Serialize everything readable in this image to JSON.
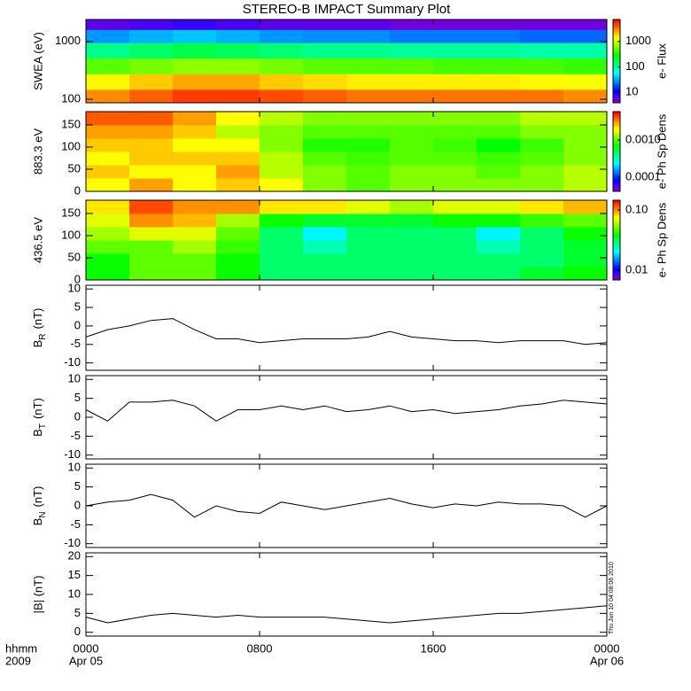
{
  "chart_data": [
    {
      "type": "heatmap",
      "title": "STEREO-B IMPACT Summary Plot",
      "y_label": "SWEA (eV)",
      "colorbar_label": "e- Flux",
      "ylog": true,
      "ylim": [
        87,
        2400
      ],
      "yticks": [
        100,
        1000
      ],
      "xlim": [
        0,
        24
      ],
      "x": [
        1,
        3,
        5,
        7,
        9,
        11,
        13,
        15,
        17,
        19,
        21,
        23
      ],
      "y": [
        110,
        200,
        380,
        700,
        1300,
        2000
      ],
      "values": [
        [
          3000,
          4000,
          5000,
          5000,
          4500,
          4000,
          3500,
          3500,
          3500,
          3500,
          3500,
          3000
        ],
        [
          1500,
          2000,
          2500,
          2500,
          2000,
          1800,
          1600,
          1600,
          1600,
          1600,
          1500,
          1400
        ],
        [
          500,
          600,
          700,
          700,
          600,
          500,
          500,
          500,
          450,
          450,
          450,
          400
        ],
        [
          120,
          150,
          180,
          160,
          140,
          120,
          120,
          110,
          110,
          110,
          100,
          100
        ],
        [
          30,
          35,
          40,
          35,
          30,
          28,
          28,
          25,
          25,
          25,
          22,
          22
        ],
        [
          6,
          7,
          8,
          7,
          6,
          6,
          6,
          5,
          5,
          5,
          5,
          5
        ]
      ],
      "clog": true,
      "clim": [
        3.9,
        7300
      ],
      "cticks": [
        10,
        100,
        1000
      ]
    },
    {
      "type": "heatmap",
      "y_label": "883.3 eV",
      "colorbar_label": "e- Ph Sp Dens",
      "ylim": [
        0,
        180
      ],
      "yticks": [
        0,
        50,
        100,
        150
      ],
      "xlim": [
        0,
        24
      ],
      "x": [
        1,
        3,
        5,
        7,
        9,
        11,
        13,
        15,
        17,
        19,
        21,
        23
      ],
      "y": [
        15,
        45,
        75,
        105,
        135,
        165
      ],
      "values": [
        [
          0.002,
          0.003,
          0.002,
          0.0025,
          0.002,
          0.0012,
          0.001,
          0.0012,
          0.0012,
          0.0012,
          0.0012,
          0.0015
        ],
        [
          0.0025,
          0.002,
          0.002,
          0.003,
          0.0015,
          0.0012,
          0.001,
          0.0012,
          0.0012,
          0.001,
          0.0012,
          0.0015
        ],
        [
          0.002,
          0.0025,
          0.0025,
          0.0025,
          0.0015,
          0.001,
          0.0009,
          0.001,
          0.001,
          0.0009,
          0.001,
          0.0012
        ],
        [
          0.0025,
          0.0025,
          0.002,
          0.002,
          0.0012,
          0.0008,
          0.0008,
          0.001,
          0.0009,
          0.0007,
          0.0009,
          0.0012
        ],
        [
          0.003,
          0.003,
          0.0025,
          0.0015,
          0.0012,
          0.001,
          0.001,
          0.001,
          0.001,
          0.001,
          0.0012,
          0.0012
        ],
        [
          0.004,
          0.004,
          0.003,
          0.002,
          0.0015,
          0.0012,
          0.0012,
          0.0012,
          0.0012,
          0.0012,
          0.0015,
          0.0015
        ]
      ],
      "clog": true,
      "clim": [
        4.2e-05,
        0.0058
      ],
      "cticks": [
        0.0001,
        {
          "value": 0.001,
          "label": "0.0010"
        }
      ]
    },
    {
      "type": "heatmap",
      "y_label": "436.5 eV",
      "colorbar_label": "e- Ph Sp Dens",
      "ylim": [
        0,
        180
      ],
      "yticks": [
        0,
        50,
        100,
        150
      ],
      "xlim": [
        0,
        24
      ],
      "x": [
        1,
        3,
        5,
        7,
        9,
        11,
        13,
        15,
        17,
        19,
        21,
        23
      ],
      "y": [
        15,
        45,
        75,
        105,
        135,
        165
      ],
      "values": [
        [
          0.04,
          0.05,
          0.05,
          0.04,
          0.03,
          0.03,
          0.03,
          0.03,
          0.03,
          0.03,
          0.035,
          0.04
        ],
        [
          0.04,
          0.05,
          0.05,
          0.04,
          0.03,
          0.03,
          0.03,
          0.03,
          0.03,
          0.03,
          0.03,
          0.035
        ],
        [
          0.05,
          0.05,
          0.06,
          0.045,
          0.03,
          0.025,
          0.03,
          0.03,
          0.03,
          0.025,
          0.03,
          0.035
        ],
        [
          0.06,
          0.07,
          0.07,
          0.05,
          0.03,
          0.02,
          0.03,
          0.03,
          0.03,
          0.02,
          0.03,
          0.04
        ],
        [
          0.07,
          0.1,
          0.09,
          0.06,
          0.04,
          0.035,
          0.035,
          0.035,
          0.04,
          0.04,
          0.045,
          0.05
        ],
        [
          0.08,
          0.12,
          0.1,
          0.1,
          0.08,
          0.08,
          0.07,
          0.06,
          0.07,
          0.07,
          0.08,
          0.09
        ]
      ],
      "clog": true,
      "clim": [
        0.0069,
        0.145
      ],
      "cticks": [
        0.01,
        {
          "value": 0.1,
          "label": "0.10"
        }
      ]
    },
    {
      "type": "line",
      "y_label": {
        "base": "B",
        "sub": "R",
        "unit": "(nT)"
      },
      "color": "#000000",
      "ylim": [
        -12,
        11
      ],
      "yticks": [
        -10,
        -5,
        0,
        5,
        10
      ],
      "xlim": [
        0,
        24
      ],
      "x": [
        0,
        1,
        2,
        3,
        4,
        5,
        6,
        7,
        8,
        9,
        10,
        11,
        12,
        13,
        14,
        15,
        16,
        17,
        18,
        19,
        20,
        21,
        22,
        23,
        24
      ],
      "values": [
        -3,
        -1,
        0,
        1.5,
        2,
        -1,
        -3.5,
        -3.5,
        -4.5,
        -4,
        -3.5,
        -3.5,
        -3.5,
        -3,
        -1.5,
        -3,
        -3.5,
        -4,
        -4,
        -4.5,
        -4,
        -4,
        -4,
        -5,
        -4.5
      ]
    },
    {
      "type": "line",
      "y_label": {
        "base": "B",
        "sub": "T",
        "unit": "(nT)"
      },
      "color": "#000000",
      "ylim": [
        -11,
        11
      ],
      "yticks": [
        -10,
        -5,
        0,
        5,
        10
      ],
      "xlim": [
        0,
        24
      ],
      "x": [
        0,
        1,
        2,
        3,
        4,
        5,
        6,
        7,
        8,
        9,
        10,
        11,
        12,
        13,
        14,
        15,
        16,
        17,
        18,
        19,
        20,
        21,
        22,
        23,
        24
      ],
      "values": [
        2,
        -1,
        4,
        4,
        4.5,
        3,
        -1,
        2,
        2,
        3,
        2,
        3,
        1.5,
        2,
        3,
        1.5,
        2,
        1,
        1.5,
        2,
        3,
        3.5,
        4.5,
        4,
        3.5
      ]
    },
    {
      "type": "line",
      "y_label": {
        "base": "B",
        "sub": "N",
        "unit": "(nT)"
      },
      "color": "#000000",
      "ylim": [
        -11,
        11
      ],
      "yticks": [
        -10,
        -5,
        0,
        5,
        10
      ],
      "xlim": [
        0,
        24
      ],
      "x": [
        0,
        1,
        2,
        3,
        4,
        5,
        6,
        7,
        8,
        9,
        10,
        11,
        12,
        13,
        14,
        15,
        16,
        17,
        18,
        19,
        20,
        21,
        22,
        23,
        24
      ],
      "values": [
        0,
        1,
        1.5,
        3,
        1.5,
        -3,
        0,
        -1.5,
        -2,
        1,
        0,
        -1,
        0,
        1,
        2,
        0.5,
        -0.5,
        0.5,
        0,
        1,
        0.5,
        0.5,
        0,
        -3,
        0
      ]
    },
    {
      "type": "line",
      "y_label": "|B| (nT)",
      "color": "#000000",
      "ylim": [
        -1,
        21
      ],
      "yticks": [
        0,
        5,
        10,
        15,
        20
      ],
      "xlim": [
        0,
        24
      ],
      "x": [
        0,
        1,
        2,
        3,
        4,
        5,
        6,
        7,
        8,
        9,
        10,
        11,
        12,
        13,
        14,
        15,
        16,
        17,
        18,
        19,
        20,
        21,
        22,
        23,
        24
      ],
      "values": [
        4,
        2.5,
        3.5,
        4.5,
        5,
        4.5,
        4,
        4.5,
        4,
        4,
        4,
        4,
        3.5,
        3,
        2.5,
        3,
        3.5,
        4,
        4.5,
        5,
        5,
        5.5,
        6,
        6.5,
        7
      ],
      "annotation": "Thu Jun 10 04:08:06 2010",
      "x_label": "hhmm",
      "x_year": "2009",
      "xticks": [
        {
          "value": 0,
          "label": "0000"
        },
        {
          "value": 8,
          "label": "0800"
        },
        {
          "value": 16,
          "label": "1600"
        },
        {
          "value": 24,
          "label": "0000"
        }
      ],
      "x_dates": [
        {
          "value": 0,
          "label": "Apr 05"
        },
        {
          "value": 24,
          "label": "Apr 06"
        }
      ]
    }
  ]
}
